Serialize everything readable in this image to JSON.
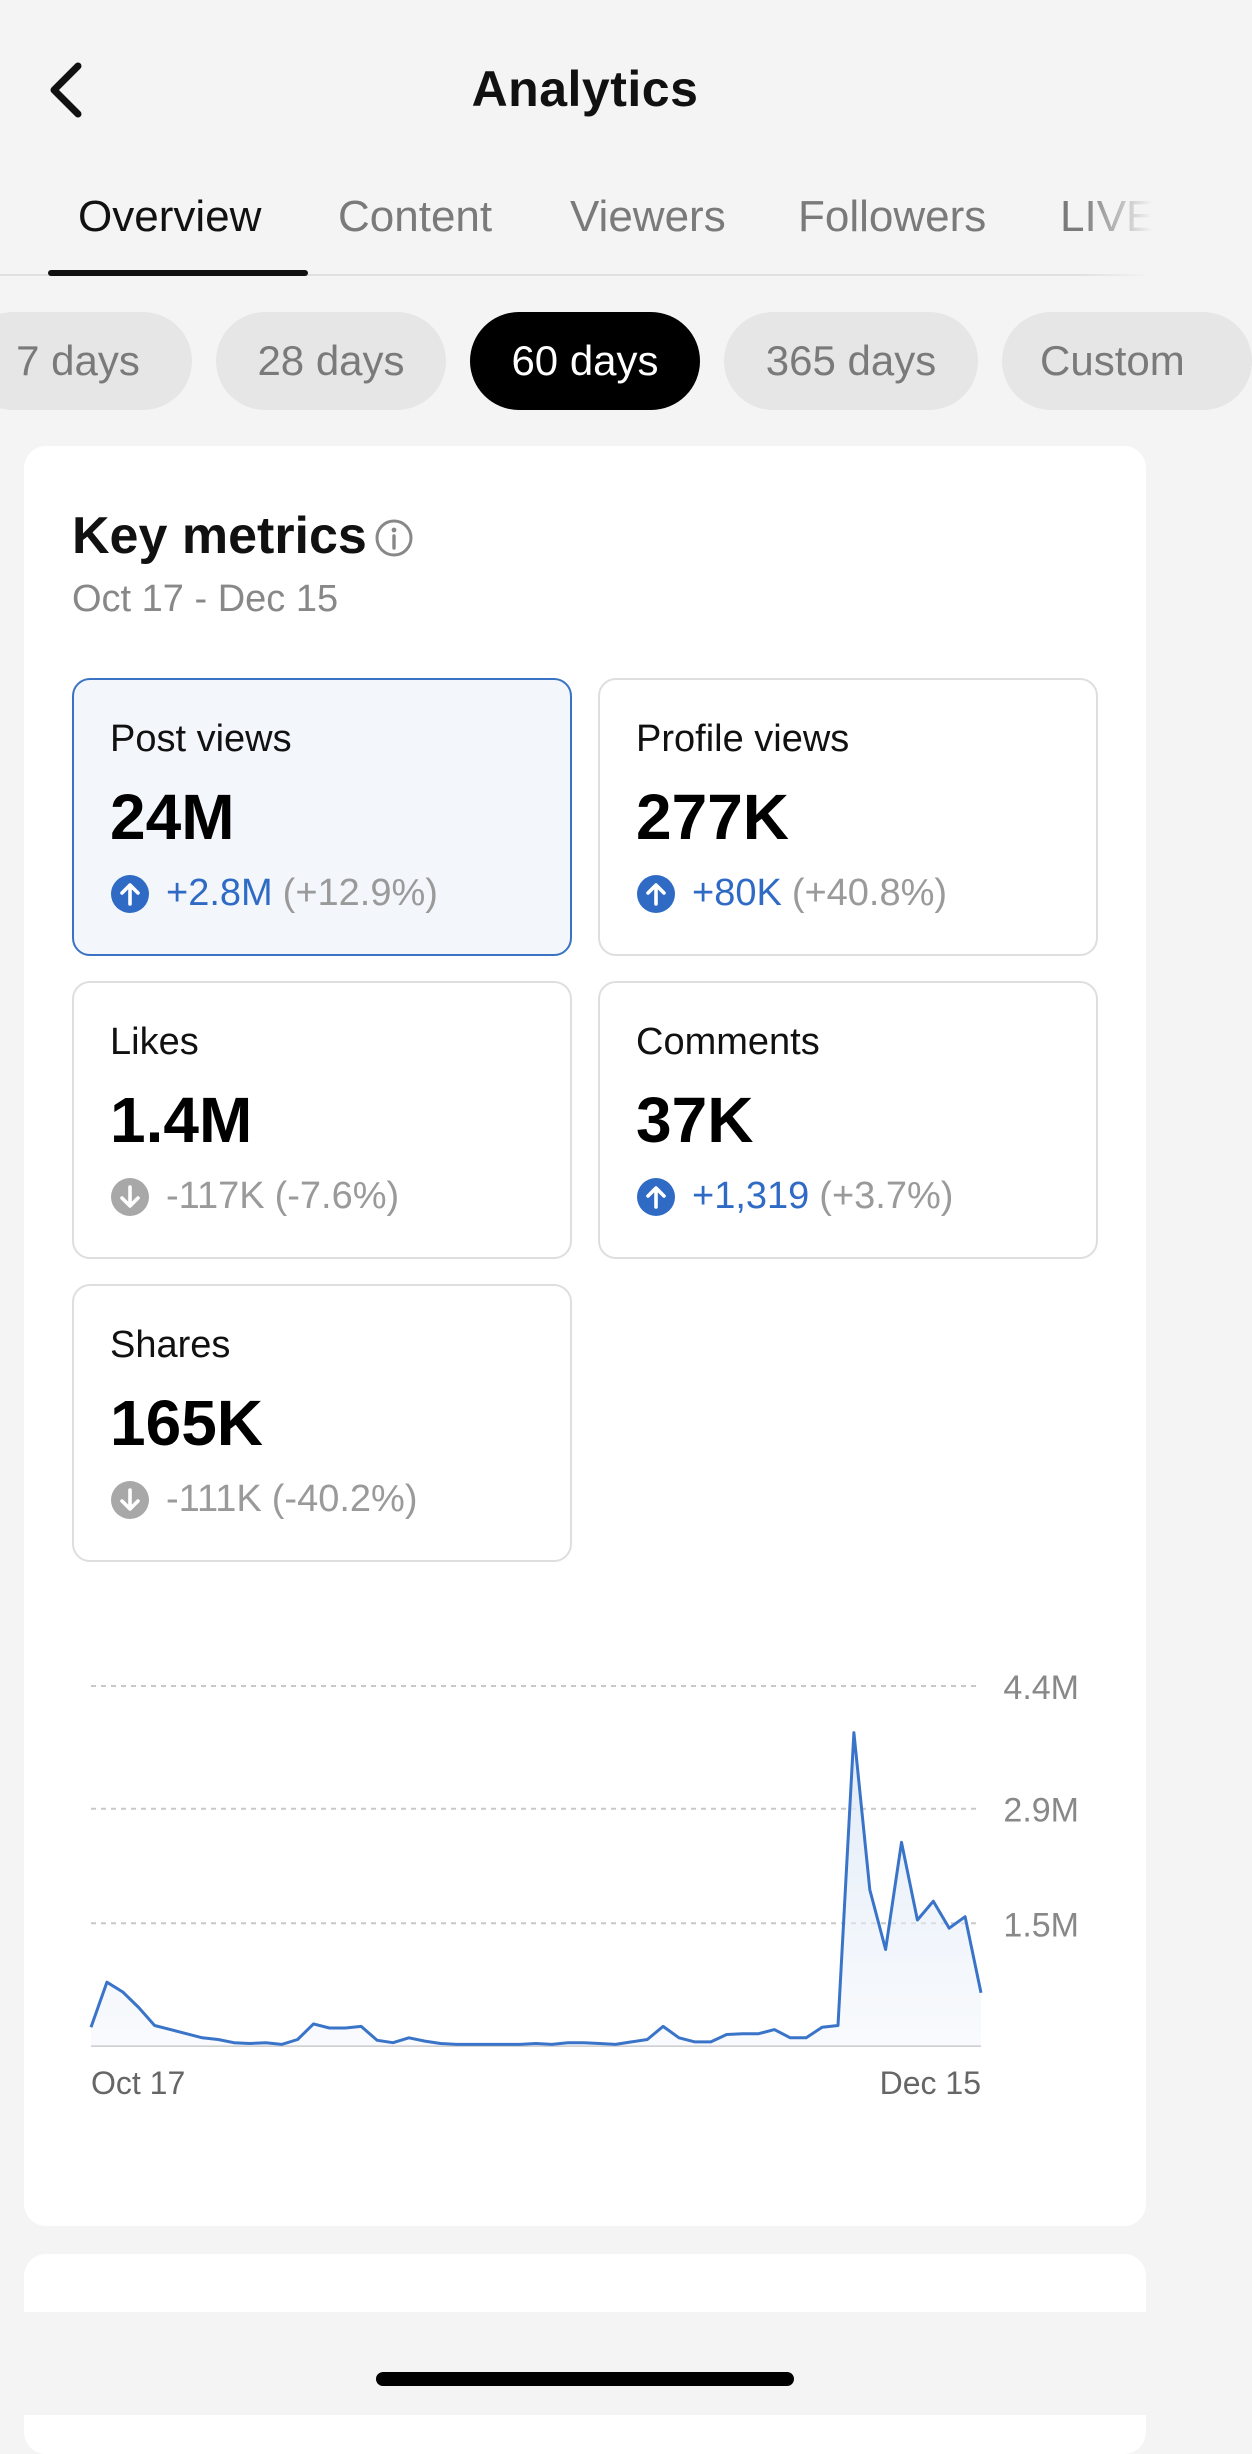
{
  "header": {
    "title": "Analytics",
    "back_icon": "chevron-left-icon"
  },
  "tabs": [
    {
      "label": "Overview",
      "active": true
    },
    {
      "label": "Content",
      "active": false
    },
    {
      "label": "Viewers",
      "active": false
    },
    {
      "label": "Followers",
      "active": false
    },
    {
      "label": "LIVE",
      "active": false
    }
  ],
  "date_filters": [
    {
      "label": "7 days",
      "active": false
    },
    {
      "label": "28 days",
      "active": false
    },
    {
      "label": "60 days",
      "active": true
    },
    {
      "label": "365 days",
      "active": false
    },
    {
      "label": "Custom",
      "active": false
    }
  ],
  "key_metrics": {
    "title": "Key metrics",
    "info_icon": "info-circle-icon",
    "date_range": "Oct 17 - Dec 15",
    "metrics": [
      {
        "label": "Post views",
        "value": "24M",
        "delta": "+2.8M",
        "pct": "(+12.9%)",
        "direction": "up",
        "selected": true
      },
      {
        "label": "Profile views",
        "value": "277K",
        "delta": "+80K",
        "pct": "(+40.8%)",
        "direction": "up",
        "selected": false
      },
      {
        "label": "Likes",
        "value": "1.4M",
        "delta": "-117K",
        "pct": "(-7.6%)",
        "direction": "down",
        "selected": false
      },
      {
        "label": "Comments",
        "value": "37K",
        "delta": "+1,319",
        "pct": "(+3.7%)",
        "direction": "up",
        "selected": false
      },
      {
        "label": "Shares",
        "value": "165K",
        "delta": "-111K",
        "pct": "(-40.2%)",
        "direction": "down",
        "selected": false
      }
    ]
  },
  "colors": {
    "accent_blue": "#2f6bc5",
    "selected_border": "#3a72c4",
    "muted_gray": "#9a9a9a",
    "line": "#3a74c9"
  },
  "chart_data": {
    "type": "area",
    "ylim": [
      0,
      4400000
    ],
    "y_ticks": [
      {
        "value": 4400000,
        "label": "4.4M"
      },
      {
        "value": 2900000,
        "label": "2.9M"
      },
      {
        "value": 1500000,
        "label": "1.5M"
      }
    ],
    "x_labels": [
      "Oct 17",
      "Dec 15"
    ],
    "grid": true,
    "series": [
      {
        "values": [
          230000,
          780000,
          660000,
          470000,
          250000,
          200000,
          150000,
          100000,
          80000,
          40000,
          30000,
          40000,
          20000,
          80000,
          270000,
          220000,
          220000,
          240000,
          70000,
          40000,
          100000,
          60000,
          30000,
          20000,
          20000,
          20000,
          20000,
          20000,
          30000,
          20000,
          40000,
          40000,
          30000,
          20000,
          50000,
          80000,
          240000,
          100000,
          50000,
          50000,
          140000,
          150000,
          150000,
          200000,
          100000,
          100000,
          230000,
          250000,
          3830000,
          1910000,
          1180000,
          2490000,
          1540000,
          1770000,
          1440000,
          1580000,
          650000
        ]
      }
    ]
  }
}
